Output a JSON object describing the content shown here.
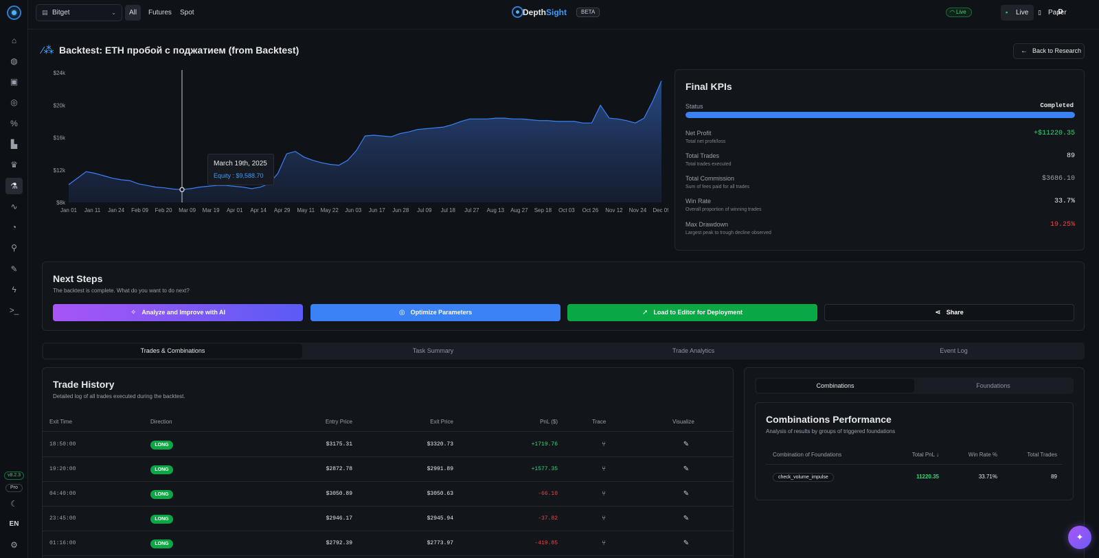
{
  "app": {
    "brand_prefix": "Depth",
    "brand_suffix": "Sight",
    "beta": "BETA",
    "version": "v8.2.3",
    "plan": "Pro",
    "language": "EN"
  },
  "header": {
    "exchange": "Bitget",
    "market_tabs": [
      "All",
      "Futures",
      "Spot"
    ],
    "active_market": "All",
    "connection_status": "Live",
    "modes": [
      "Live",
      "Paper"
    ],
    "user_initial": "D"
  },
  "page": {
    "title": "Backtest: ETH пробой с поджатием (from Backtest)",
    "back_button": "Back to Research"
  },
  "chart_data": {
    "type": "area",
    "y_ticks": [
      "$8k",
      "$12k",
      "$16k",
      "$20k",
      "$24k"
    ],
    "ylim": [
      8000,
      24000
    ],
    "x_ticks": [
      "Jan 01",
      "Jan 11",
      "Jan 24",
      "Feb 09",
      "Feb 20",
      "Mar 09",
      "Mar 19",
      "Apr 01",
      "Apr 14",
      "Apr 29",
      "May 11",
      "May 22",
      "Jun 03",
      "Jun 17",
      "Jun 28",
      "Jul 09",
      "Jul 18",
      "Jul 27",
      "Aug 13",
      "Aug 27",
      "Sep 18",
      "Oct 03",
      "Oct 26",
      "Nov 12",
      "Nov 24",
      "Dec 09"
    ],
    "series": [
      {
        "values": [
          10200,
          11000,
          11800,
          11600,
          11300,
          11000,
          10800,
          10700,
          10300,
          10100,
          9900,
          9800,
          9650,
          9590,
          9700,
          9900,
          10000,
          10100,
          10100,
          10000,
          9900,
          9700,
          9900,
          10300,
          11600,
          14000,
          14300,
          13600,
          13200,
          12900,
          12700,
          12600,
          13200,
          14400,
          16200,
          16300,
          16200,
          16100,
          16500,
          16700,
          17000,
          17100,
          17200,
          17300,
          17600,
          18000,
          18300,
          18300,
          18300,
          18400,
          18400,
          18300,
          18300,
          18200,
          18100,
          18100,
          18000,
          18000,
          18000,
          17800,
          17800,
          20000,
          18400,
          18300,
          18100,
          17800,
          18400,
          20500,
          23000
        ]
      }
    ],
    "tooltip": {
      "date": "March 19th, 2025",
      "label": "Equity : $9,588.70",
      "value": 9588.7,
      "x_index": 13
    },
    "grid": false,
    "legend": "none"
  },
  "kpis": {
    "title": "Final KPIs",
    "status_label": "Status",
    "status_value": "Completed",
    "progress": 1.0,
    "items": [
      {
        "label": "Net Profit",
        "sub": "Total net profit/loss",
        "value": "+$11220.35",
        "tone": "pos"
      },
      {
        "label": "Total Trades",
        "sub": "Total trades executed",
        "value": "89",
        "tone": "plain"
      },
      {
        "label": "Total Commission",
        "sub": "Sum of fees paid for all trades",
        "value": "$3686.10",
        "tone": "muted"
      },
      {
        "label": "Win Rate",
        "sub": "Overall proportion of winning trades",
        "value": "33.7%",
        "tone": "plain"
      },
      {
        "label": "Max Drawdown",
        "sub": "Largest peak to trough decline observed",
        "value": "19.25%",
        "tone": "neg"
      }
    ]
  },
  "next_steps": {
    "title": "Next Steps",
    "subtitle": "The backtest is complete. What do you want to do next?",
    "buttons": {
      "ai": "Analyze and Improve with AI",
      "optimize": "Optimize Parameters",
      "load": "Load to Editor for Deployment",
      "share": "Share"
    }
  },
  "main_tabs": [
    "Trades & Combinations",
    "Task Summary",
    "Trade Analytics",
    "Event Log"
  ],
  "trade_history": {
    "title": "Trade History",
    "subtitle": "Detailed log of all trades executed during the backtest.",
    "columns": [
      "Exit Time",
      "Direction",
      "Entry Price",
      "Exit Price",
      "PnL ($)",
      "Trace",
      "Visualize"
    ],
    "rows": [
      {
        "exit_time": "18:50:00",
        "direction": "LONG",
        "entry": "$3175.31",
        "exit": "$3320.73",
        "pnl": "+1719.76",
        "tone": "pos"
      },
      {
        "exit_time": "19:20:00",
        "direction": "LONG",
        "entry": "$2872.78",
        "exit": "$2991.89",
        "pnl": "+1577.35",
        "tone": "pos"
      },
      {
        "exit_time": "04:40:00",
        "direction": "LONG",
        "entry": "$3050.89",
        "exit": "$3050.63",
        "pnl": "-66.10",
        "tone": "neg"
      },
      {
        "exit_time": "23:45:00",
        "direction": "LONG",
        "entry": "$2946.17",
        "exit": "$2945.94",
        "pnl": "-37.82",
        "tone": "neg"
      },
      {
        "exit_time": "01:16:00",
        "direction": "LONG",
        "entry": "$2792.39",
        "exit": "$2773.97",
        "pnl": "-419.85",
        "tone": "neg"
      }
    ]
  },
  "combinations": {
    "tabs": [
      "Combinations",
      "Foundations"
    ],
    "title": "Combinations Performance",
    "subtitle": "Analysis of results by groups of triggered foundations",
    "columns": [
      "Combination of Foundations",
      "Total PnL ↓",
      "Win Rate %",
      "Total Trades"
    ],
    "rows": [
      {
        "name": "check_volume_impulse",
        "pnl": "11220.35",
        "win_rate": "33.71%",
        "trades": "89"
      }
    ]
  },
  "colors": {
    "accent": "#3b82f6",
    "positive": "#37d67a",
    "negative": "#ef4444",
    "load_green": "#0aa844",
    "ai_gradient_start": "#a855f7",
    "ai_gradient_end": "#5b5bf5"
  },
  "icons": {
    "sidebar": [
      "home-icon",
      "globe-icon",
      "briefcase-icon",
      "target-icon",
      "percent-icon",
      "bar-chart-icon",
      "trophy-icon",
      "flask-icon",
      "activity-icon",
      "radar-icon",
      "microscope-icon",
      "pencil-icon",
      "zap-icon",
      "terminal-icon"
    ],
    "bottom": [
      "moon-icon",
      "settings-icon"
    ]
  }
}
